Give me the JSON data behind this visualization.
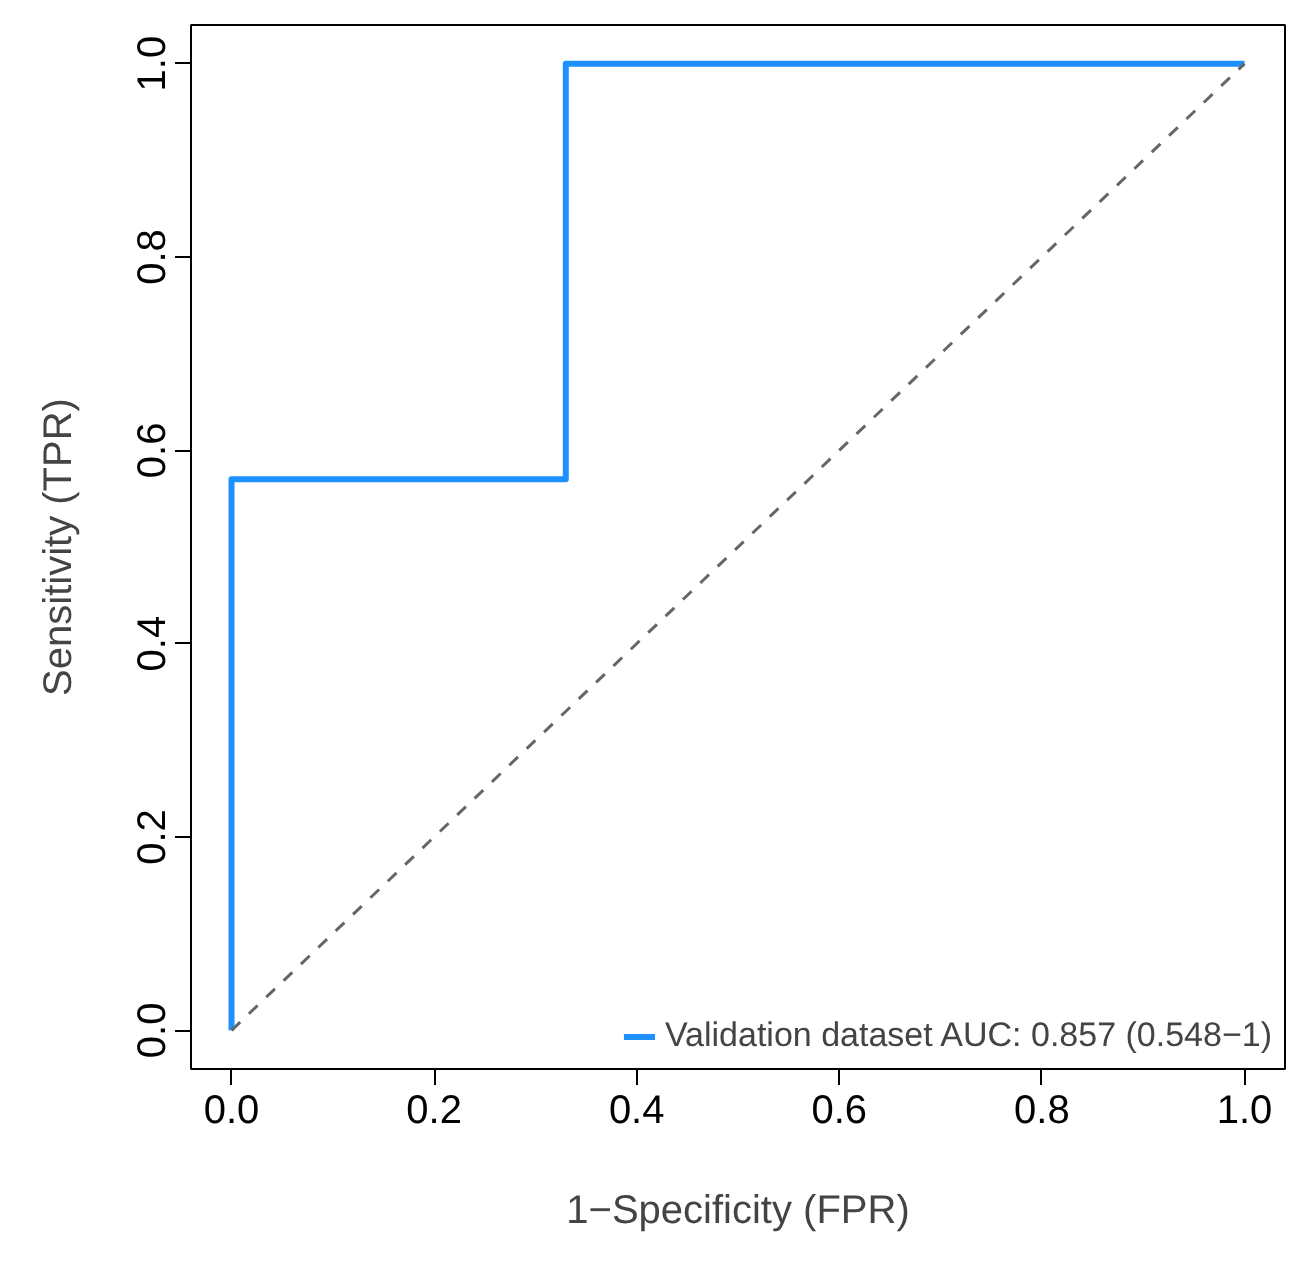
{
  "chart_data": {
    "type": "line",
    "xlabel": "1−Specificity (FPR)",
    "ylabel": "Sensitivity (TPR)",
    "series": [
      {
        "name": "Validation dataset AUC: 0.857 (0.548−1)",
        "color": "#1e90ff",
        "x": [
          0,
          0,
          0.33,
          0.33,
          1
        ],
        "values": [
          0,
          0.57,
          0.57,
          1,
          1
        ]
      },
      {
        "color": "#666666",
        "line_style": "dashed",
        "x": [
          0,
          1
        ],
        "values": [
          0,
          1
        ]
      }
    ],
    "xlim": [
      -0.04,
      1.04
    ],
    "ylim": [
      -0.04,
      1.04
    ],
    "xticks": [
      {
        "value": 0,
        "label": "0.0"
      },
      {
        "value": 0.2,
        "label": "0.2"
      },
      {
        "value": 0.4,
        "label": "0.4"
      },
      {
        "value": 0.6,
        "label": "0.6"
      },
      {
        "value": 0.8,
        "label": "0.8"
      },
      {
        "value": 1,
        "label": "1.0"
      }
    ],
    "yticks": [
      {
        "value": 0,
        "label": "0.0"
      },
      {
        "value": 0.2,
        "label": "0.2"
      },
      {
        "value": 0.4,
        "label": "0.4"
      },
      {
        "value": 0.6,
        "label": "0.6"
      },
      {
        "value": 0.8,
        "label": "0.8"
      },
      {
        "value": 1,
        "label": "1.0"
      }
    ],
    "legend": "bottom right",
    "grid": false,
    "marker": "none"
  }
}
